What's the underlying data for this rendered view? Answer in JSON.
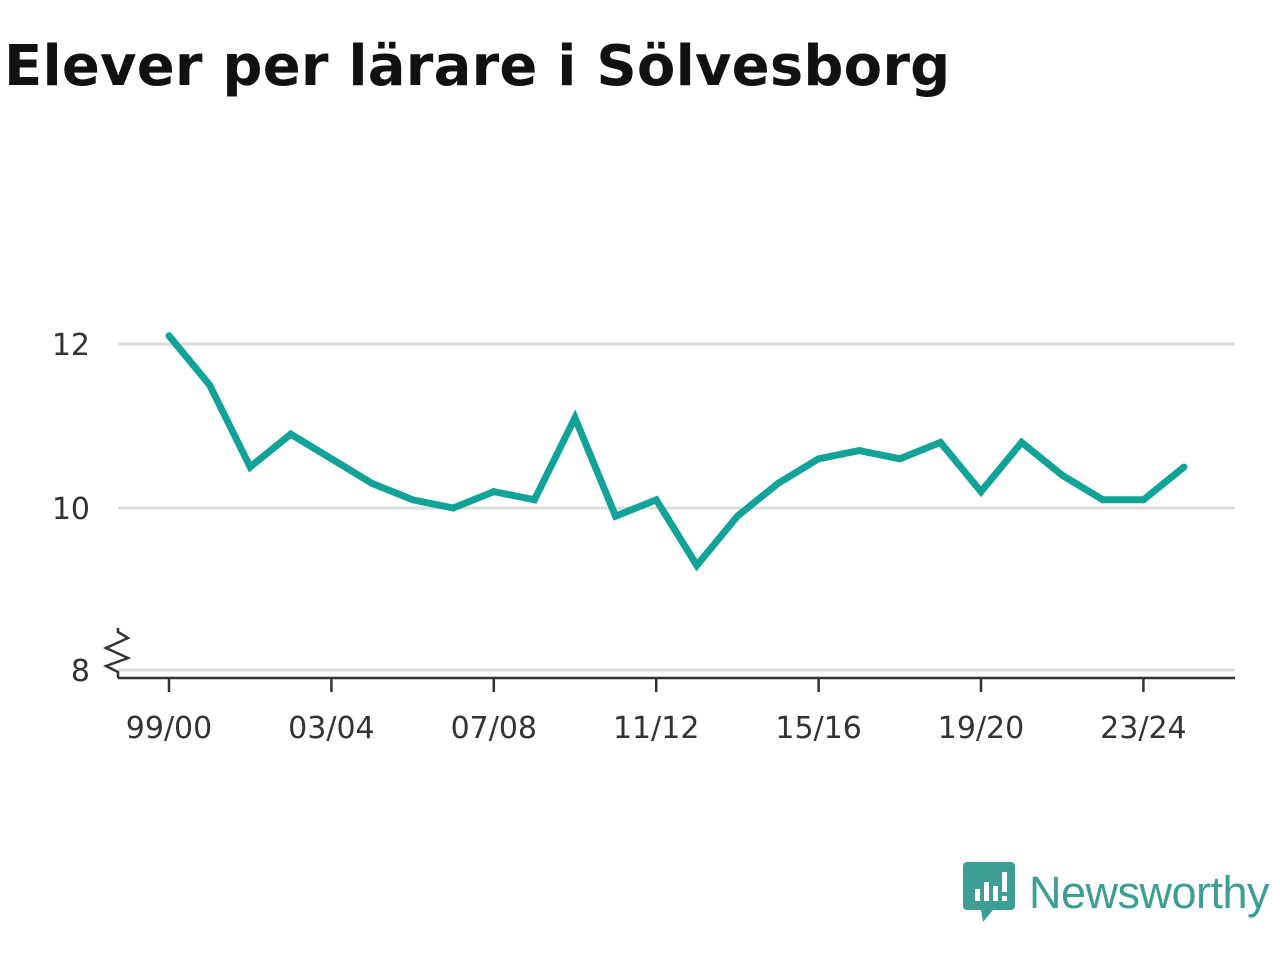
{
  "title": "Elever per lärare i Sölvesborg",
  "brand": {
    "name": "Newsworthy",
    "icon": "newsworthy-logo-icon",
    "color": "#3d9e94"
  },
  "colors": {
    "line": "#12a398",
    "grid": "#dddddd",
    "axis": "#333333"
  },
  "chart_data": {
    "type": "line",
    "title": "Elever per lärare i Sölvesborg",
    "xlabel": "",
    "ylabel": "",
    "ylim": [
      8,
      12.5
    ],
    "axis_break": true,
    "grid": "horizontal",
    "yticks": [
      8,
      10,
      12
    ],
    "xtick_labels": [
      "99/00",
      "03/04",
      "07/08",
      "11/12",
      "15/16",
      "19/20",
      "23/24"
    ],
    "x": [
      "99/00",
      "00/01",
      "01/02",
      "02/03",
      "03/04",
      "04/05",
      "05/06",
      "06/07",
      "07/08",
      "08/09",
      "09/10",
      "10/11",
      "11/12",
      "12/13",
      "13/14",
      "14/15",
      "15/16",
      "16/17",
      "17/18",
      "18/19",
      "19/20",
      "20/21",
      "21/22",
      "22/23",
      "23/24",
      "24/25"
    ],
    "series": [
      {
        "values": [
          12.1,
          11.5,
          10.5,
          10.9,
          10.6,
          10.3,
          10.1,
          10.0,
          10.2,
          10.1,
          11.1,
          9.9,
          10.1,
          9.3,
          9.9,
          10.3,
          10.6,
          10.7,
          10.6,
          10.8,
          10.2,
          10.8,
          10.4,
          10.1,
          10.1,
          10.5
        ]
      }
    ]
  }
}
